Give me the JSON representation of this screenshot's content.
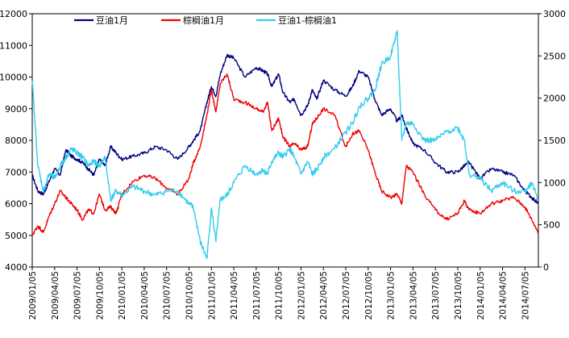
{
  "chart_data": {
    "type": "line",
    "title": "",
    "xlabel": "",
    "ylabel_left": "",
    "ylabel_right": "",
    "ylim_left": [
      4000,
      12000
    ],
    "ylim_right": [
      0,
      3000
    ],
    "left_ticks": [
      4000,
      5000,
      6000,
      7000,
      8000,
      9000,
      10000,
      11000,
      12000
    ],
    "right_ticks": [
      0,
      500,
      1000,
      1500,
      2000,
      2500,
      3000
    ],
    "x_tick_labels": [
      "2009/01/05",
      "2009/04/05",
      "2009/07/05",
      "2009/10/05",
      "2010/01/05",
      "2010/04/05",
      "2010/07/05",
      "2010/10/05",
      "2011/01/05",
      "2011/04/05",
      "2011/07/05",
      "2011/10/05",
      "2012/01/05",
      "2012/04/05",
      "2012/07/05",
      "2012/10/05",
      "2013/01/05",
      "2013/04/05",
      "2013/07/05",
      "2013/10/05",
      "2014/01/05",
      "2014/04/05",
      "2014/07/05"
    ],
    "x_range": [
      0,
      22.6
    ],
    "legend": "top-left",
    "grid": false,
    "series": [
      {
        "name": "豆油1月",
        "axis": "left",
        "color": "#000080",
        "x": [
          0,
          0.25,
          0.5,
          0.75,
          1,
          1.25,
          1.5,
          1.75,
          2,
          2.25,
          2.5,
          2.75,
          3,
          3.25,
          3.5,
          3.75,
          4,
          4.5,
          5,
          5.5,
          6,
          6.5,
          7,
          7.2,
          7.5,
          7.8,
          8,
          8.2,
          8.4,
          8.7,
          9,
          9.5,
          10,
          10.3,
          10.5,
          10.7,
          11,
          11.2,
          11.5,
          11.7,
          12,
          12.3,
          12.5,
          12.7,
          13,
          13.5,
          14,
          14.3,
          14.6,
          15,
          15.3,
          15.6,
          16,
          16.3,
          16.5,
          16.7,
          17,
          17.5,
          18,
          18.5,
          19,
          19.3,
          19.5,
          20,
          20.5,
          21,
          21.5,
          22,
          22.3,
          22.6
        ],
        "values": [
          6900,
          6400,
          6300,
          6700,
          7100,
          6900,
          7700,
          7500,
          7400,
          7300,
          7100,
          6900,
          7400,
          7200,
          7800,
          7600,
          7400,
          7500,
          7600,
          7800,
          7700,
          7400,
          7800,
          8000,
          8300,
          9200,
          9700,
          9400,
          10100,
          10700,
          10600,
          10000,
          10300,
          10200,
          10100,
          9700,
          10100,
          9500,
          9200,
          9300,
          8800,
          9100,
          9600,
          9300,
          9900,
          9600,
          9400,
          9700,
          10200,
          10000,
          9300,
          8800,
          9000,
          8600,
          8800,
          8400,
          7900,
          7700,
          7300,
          7000,
          7000,
          7200,
          7300,
          6800,
          7100,
          7000,
          6900,
          6400,
          6200,
          6000
        ]
      },
      {
        "name": "棕榈油1月",
        "axis": "left",
        "color": "#ee0000",
        "x": [
          0,
          0.25,
          0.5,
          0.75,
          1,
          1.25,
          1.5,
          1.75,
          2,
          2.25,
          2.5,
          2.75,
          3,
          3.25,
          3.5,
          3.75,
          4,
          4.5,
          5,
          5.5,
          6,
          6.5,
          7,
          7.2,
          7.5,
          7.8,
          8,
          8.2,
          8.4,
          8.7,
          9,
          9.5,
          10,
          10.3,
          10.5,
          10.7,
          11,
          11.2,
          11.5,
          11.7,
          12,
          12.3,
          12.5,
          12.7,
          13,
          13.5,
          14,
          14.3,
          14.6,
          15,
          15.3,
          15.6,
          16,
          16.3,
          16.5,
          16.7,
          17,
          17.5,
          18,
          18.5,
          19,
          19.3,
          19.5,
          20,
          20.5,
          21,
          21.5,
          22,
          22.3,
          22.6
        ],
        "values": [
          5000,
          5300,
          5100,
          5600,
          6000,
          6400,
          6200,
          6000,
          5800,
          5500,
          5800,
          5700,
          6300,
          5800,
          5900,
          5700,
          6300,
          6700,
          6900,
          6800,
          6500,
          6300,
          6800,
          7300,
          7800,
          8800,
          9600,
          8900,
          9800,
          10100,
          9300,
          9200,
          9000,
          8900,
          9200,
          8300,
          8700,
          8100,
          7800,
          7900,
          7700,
          7800,
          8500,
          8700,
          9000,
          8800,
          7800,
          8200,
          8300,
          7700,
          7000,
          6400,
          6200,
          6300,
          6000,
          7200,
          7000,
          6300,
          5800,
          5500,
          5700,
          6100,
          5800,
          5700,
          6000,
          6100,
          6200,
          5900,
          5500,
          5100
        ]
      },
      {
        "name": "豆油1-棕榈油1",
        "axis": "right",
        "color": "#33ccee",
        "x": [
          0,
          0.25,
          0.5,
          0.75,
          1,
          1.25,
          1.5,
          1.75,
          2,
          2.25,
          2.5,
          2.75,
          3,
          3.25,
          3.5,
          3.75,
          4,
          4.5,
          5,
          5.5,
          6,
          6.5,
          7,
          7.2,
          7.5,
          7.8,
          8,
          8.2,
          8.4,
          8.7,
          9,
          9.5,
          10,
          10.3,
          10.5,
          10.7,
          11,
          11.2,
          11.5,
          11.7,
          12,
          12.3,
          12.5,
          12.7,
          13,
          13.5,
          14,
          14.3,
          14.6,
          15,
          15.3,
          15.6,
          16,
          16.3,
          16.5,
          16.7,
          17,
          17.5,
          18,
          18.5,
          19,
          19.3,
          19.5,
          20,
          20.5,
          21,
          21.5,
          22,
          22.3,
          22.6
        ],
        "values": [
          2200,
          1200,
          900,
          1100,
          1050,
          1200,
          1300,
          1400,
          1350,
          1300,
          1200,
          1250,
          1200,
          1300,
          800,
          900,
          850,
          950,
          900,
          850,
          900,
          900,
          750,
          700,
          300,
          100,
          700,
          300,
          800,
          850,
          1000,
          1200,
          1100,
          1150,
          1100,
          1250,
          1350,
          1300,
          1400,
          1300,
          1100,
          1250,
          1100,
          1150,
          1300,
          1400,
          1600,
          1700,
          1900,
          2000,
          2100,
          2400,
          2500,
          2800,
          1500,
          1700,
          1700,
          1500,
          1500,
          1600,
          1650,
          1500,
          1100,
          1050,
          900,
          1000,
          900,
          900,
          1000,
          800
        ]
      }
    ]
  }
}
